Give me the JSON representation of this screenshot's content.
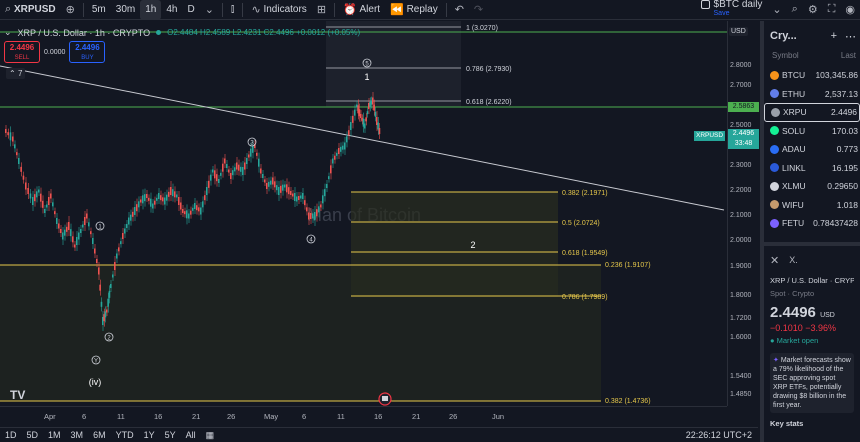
{
  "toolbar": {
    "symbol": "XRPUSD",
    "intervals": [
      "5m",
      "30m",
      "1h",
      "4h",
      "D"
    ],
    "active_interval": "1h",
    "indicators_label": "Indicators",
    "alert_label": "Alert",
    "replay_label": "Replay",
    "layout_name": "$BTC daily",
    "layout_status": "Save"
  },
  "legend": {
    "title": "XRP / U.S. Dollar · 1h · CRYPTO",
    "ohlc": "O2.4484 H2.4589 L2.4231 C2.4496 +0.0012 (+0.05%)",
    "sell_price": "2.4496",
    "sell_label": "SELL",
    "spread": "0.0000",
    "buy_price": "2.4496",
    "buy_label": "BUY",
    "collapsed_count": "7"
  },
  "watermark": "Man of Bitcoin",
  "fib_labels": {
    "f1": "1 (3.0270)",
    "f786": "0.786 (2.7930)",
    "f618": "0.618 (2.6220)",
    "b382": "0.382 (2.1971)",
    "b5": "0.5 (2.0724)",
    "b618": "0.618 (1.9549)",
    "b236": "0.236 (1.9107)",
    "b786": "0.786 (1.7989)",
    "b382low": "0.382 (1.4736)"
  },
  "wave_labels": {
    "w1": "1",
    "w2": "2",
    "w3": "3",
    "w4": "4",
    "w5": "5",
    "wave_i": "1",
    "wave_ii": "2",
    "wave_y": "Y",
    "wave_iv": "(iv)"
  },
  "price_axis": {
    "currency": "USD",
    "ticks": [
      "2.8000",
      "2.7000",
      "2.5863",
      "2.5000",
      "2.3000",
      "2.2000",
      "2.1000",
      "2.0000",
      "1.9000",
      "1.8000",
      "1.7200",
      "1.6000",
      "1.5400",
      "1.4850",
      "1.4000"
    ],
    "current_symbol": "XRPUSD",
    "current_price": "2.4496",
    "countdown": "33:48"
  },
  "time_axis": [
    "Apr",
    "6",
    "11",
    "16",
    "21",
    "26",
    "May",
    "6",
    "11",
    "16",
    "21",
    "26",
    "Jun"
  ],
  "bottom_ranges": [
    "1D",
    "5D",
    "1M",
    "3M",
    "6M",
    "YTD",
    "1Y",
    "5Y",
    "All"
  ],
  "clock": "22:26:12 UTC+2",
  "watchlist": {
    "title": "Cry...",
    "col_symbol": "Symbol",
    "col_last": "Last",
    "items": [
      {
        "sym": "BTCU",
        "last": "103,345.86",
        "color": "#f7931a"
      },
      {
        "sym": "ETHU",
        "last": "2,537.13",
        "color": "#627eea"
      },
      {
        "sym": "XRPU",
        "last": "2.4496",
        "color": "#9aa0aa"
      },
      {
        "sym": "SOLU",
        "last": "170.03",
        "color": "#14f195"
      },
      {
        "sym": "ADAU",
        "last": "0.773",
        "color": "#2a6df4"
      },
      {
        "sym": "LINKL",
        "last": "16.195",
        "color": "#2a5ada"
      },
      {
        "sym": "XLMU",
        "last": "0.29650",
        "color": "#d1d4dc"
      },
      {
        "sym": "WIFU",
        "last": "1.018",
        "color": "#c49a6c"
      },
      {
        "sym": "FETU",
        "last": "0.78437428",
        "color": "#7b61ff"
      }
    ]
  },
  "detail": {
    "name": "XRP / U.S. Dollar · CRYPTO",
    "sub": "Spot · Crypto",
    "price": "2.4496",
    "currency": "USD",
    "change": "−0.1010  −3.96%",
    "status": "Market open",
    "news": "Market forecasts show a 79% likelihood of the SEC approving spot XRP ETFs, potentially drawing $8 billion in the first year.",
    "key_stats": "Key stats"
  }
}
